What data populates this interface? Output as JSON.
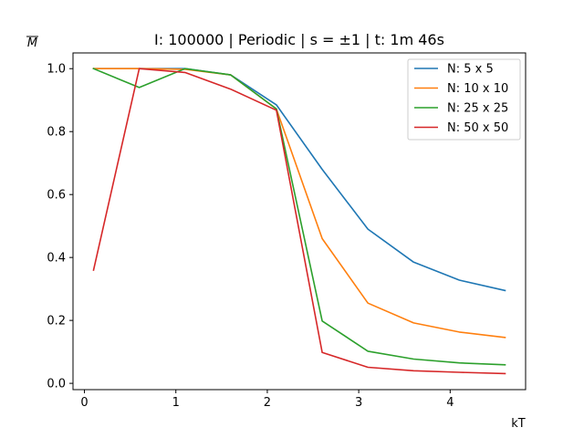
{
  "chart_data": {
    "type": "line",
    "title": "I: 100000 | Periodic | s = ±1 | t: 1m 46s",
    "xlabel": "kT",
    "ylabel": "M",
    "ylabel_overline": true,
    "xlim": [
      -0.125,
      4.825
    ],
    "ylim": [
      -0.02,
      1.05
    ],
    "xticks": [
      0,
      1,
      2,
      3,
      4
    ],
    "yticks": [
      0.0,
      0.2,
      0.4,
      0.6,
      0.8,
      1.0
    ],
    "xtick_labels": [
      "0",
      "1",
      "2",
      "3",
      "4"
    ],
    "ytick_labels": [
      "0.0",
      "0.2",
      "0.4",
      "0.6",
      "0.8",
      "1.0"
    ],
    "grid": false,
    "legend_position": "upper right",
    "x": [
      0.1,
      0.6,
      1.1,
      1.6,
      2.1,
      2.6,
      3.1,
      3.6,
      4.1,
      4.6
    ],
    "series": [
      {
        "name": "N: 5 x 5",
        "color": "#1f77b4",
        "values": [
          1.0,
          1.0,
          1.0,
          0.98,
          0.885,
          0.68,
          0.49,
          0.385,
          0.328,
          0.295
        ]
      },
      {
        "name": "N: 10 x 10",
        "color": "#ff7f0e",
        "values": [
          1.0,
          1.0,
          0.998,
          0.98,
          0.872,
          0.46,
          0.255,
          0.192,
          0.163,
          0.146
        ]
      },
      {
        "name": "N: 25 x 25",
        "color": "#2ca02c",
        "values": [
          1.0,
          0.94,
          1.0,
          0.98,
          0.872,
          0.198,
          0.102,
          0.077,
          0.065,
          0.059
        ]
      },
      {
        "name": "N: 50 x 50",
        "color": "#d62728",
        "values": [
          0.36,
          1.0,
          0.988,
          0.935,
          0.868,
          0.098,
          0.051,
          0.04,
          0.035,
          0.031
        ]
      }
    ]
  }
}
